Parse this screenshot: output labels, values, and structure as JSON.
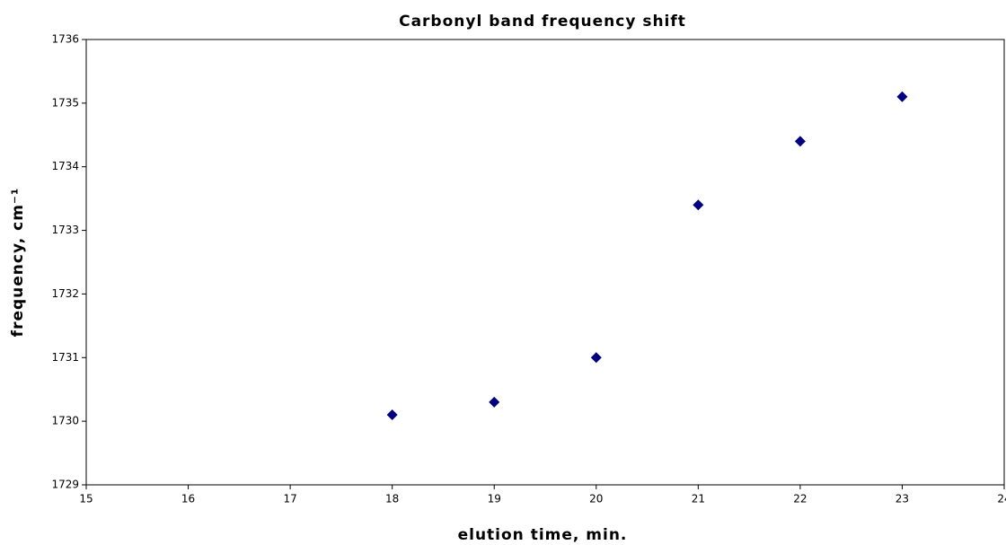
{
  "chart_data": {
    "type": "scatter",
    "title": "Carbonyl band frequency shift",
    "xlabel": "elution time, min.",
    "ylabel": "frequency, cm⁻¹",
    "series": [
      {
        "color": "#000080",
        "x": [
          18,
          19,
          20,
          21,
          22,
          23
        ],
        "values": [
          1730.1,
          1730.3,
          1731,
          1733.4,
          1734.4,
          1735.1
        ]
      }
    ],
    "xlim": [
      15,
      24
    ],
    "xticks": [
      15,
      16,
      17,
      18,
      19,
      20,
      21,
      22,
      23,
      24
    ],
    "ylim": [
      1729,
      1736
    ],
    "yticks": [
      1729,
      1730,
      1731,
      1732,
      1733,
      1734,
      1735,
      1736
    ],
    "grid": false,
    "marker": "diamond"
  }
}
